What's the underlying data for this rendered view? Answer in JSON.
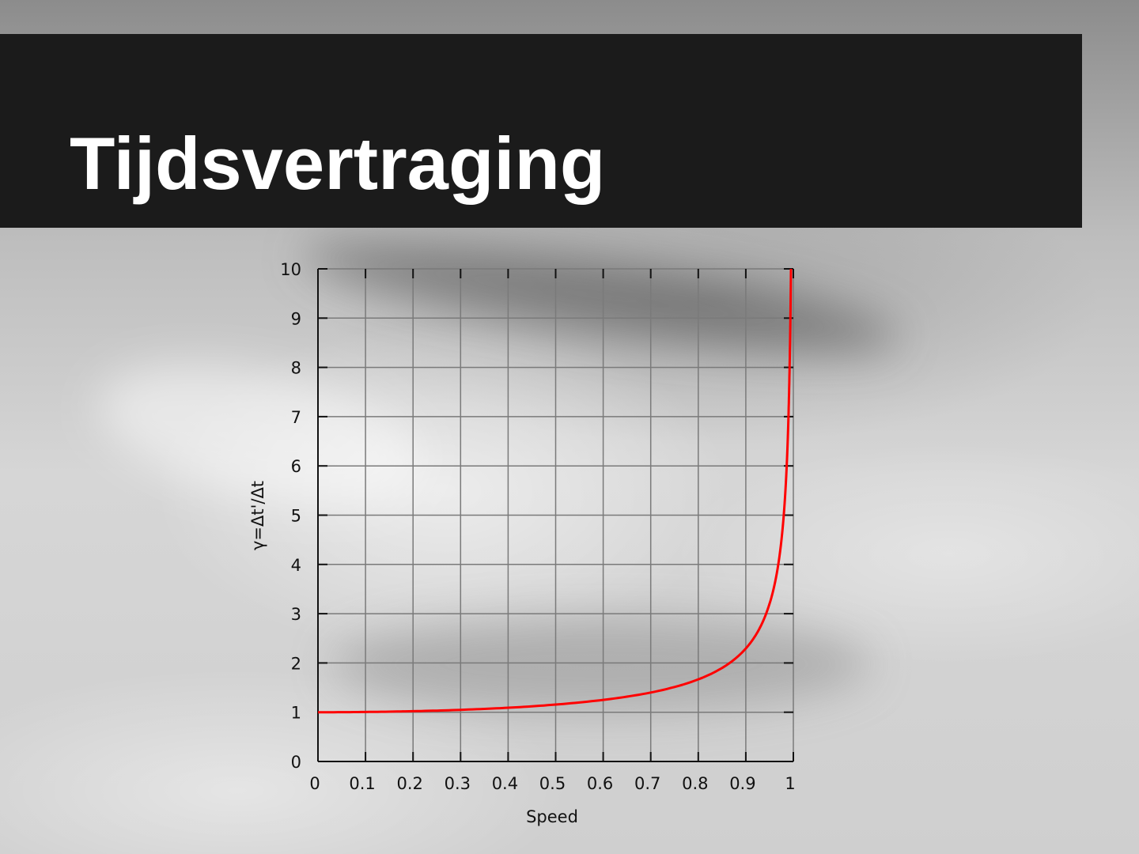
{
  "slide": {
    "title": "Tijdsvertraging"
  },
  "chart_data": {
    "type": "line",
    "xlabel": "Speed",
    "ylabel": "γ=Δt'/Δt",
    "xlim": [
      0,
      1
    ],
    "ylim": [
      0,
      10
    ],
    "x_ticks": [
      "0",
      "0.1",
      "0.2",
      "0.3",
      "0.4",
      "0.5",
      "0.6",
      "0.7",
      "0.8",
      "0.9",
      "1"
    ],
    "y_ticks": [
      "0",
      "1",
      "2",
      "3",
      "4",
      "5",
      "6",
      "7",
      "8",
      "9",
      "10"
    ],
    "grid": true,
    "line_color": "#ff0000",
    "series": [
      {
        "x": [
          0,
          0.1,
          0.2,
          0.3,
          0.4,
          0.5,
          0.6,
          0.7,
          0.8,
          0.85,
          0.9,
          0.93,
          0.95,
          0.97,
          0.98,
          0.99,
          0.993,
          0.995
        ],
        "values": [
          1.0,
          1.005,
          1.021,
          1.048,
          1.091,
          1.155,
          1.25,
          1.4,
          1.667,
          1.898,
          2.294,
          2.72,
          3.203,
          4.113,
          5.025,
          7.089,
          8.47,
          10.0
        ]
      }
    ]
  }
}
